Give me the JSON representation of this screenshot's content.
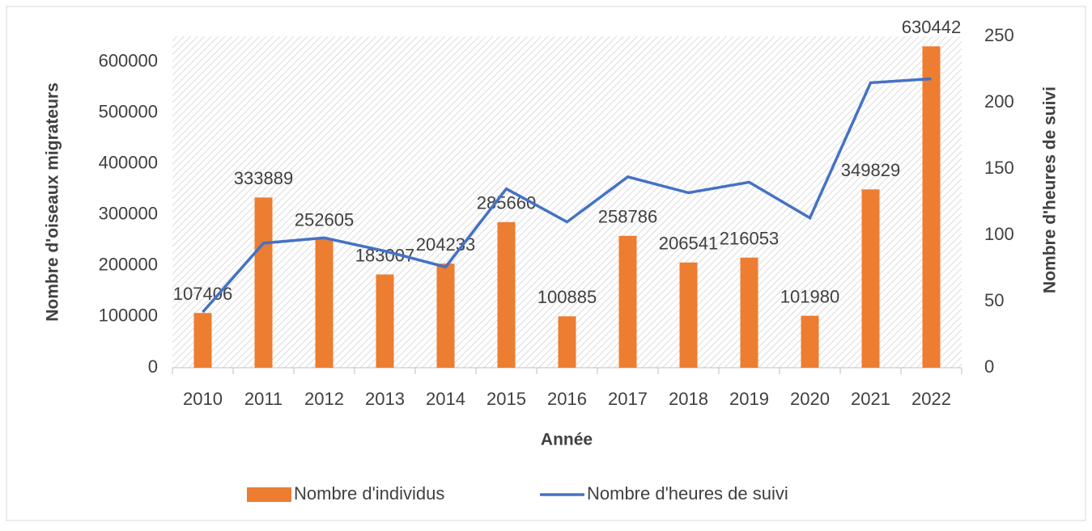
{
  "chart_data": {
    "type": "bar_line",
    "x_label": "Année",
    "y_label": "Nombre d'oiseaux migrateurs",
    "y2_label": "Nombre d'heures de suivi",
    "categories": [
      "2010",
      "2011",
      "2012",
      "2013",
      "2014",
      "2015",
      "2016",
      "2017",
      "2018",
      "2019",
      "2020",
      "2021",
      "2022"
    ],
    "series": [
      {
        "name": "Nombre d'individus",
        "type": "bar",
        "color": "#ed7d31",
        "values": [
          107406,
          333889,
          252605,
          183007,
          204233,
          285660,
          100885,
          258786,
          206541,
          216053,
          101980,
          349829,
          630442
        ]
      },
      {
        "name": "Nombre d'heures de suivi",
        "type": "line",
        "axis": "y2",
        "color": "#4472c4",
        "values": [
          42,
          94,
          98,
          88,
          76,
          135,
          110,
          144,
          132,
          140,
          113,
          215,
          218
        ]
      }
    ],
    "ylim": [
      0,
      650000
    ],
    "yticks": [
      0,
      100000,
      200000,
      300000,
      400000,
      500000,
      600000
    ],
    "y2lim": [
      0,
      250
    ],
    "y2ticks": [
      0,
      50,
      100,
      150,
      200,
      250
    ],
    "legend": "bottom"
  }
}
